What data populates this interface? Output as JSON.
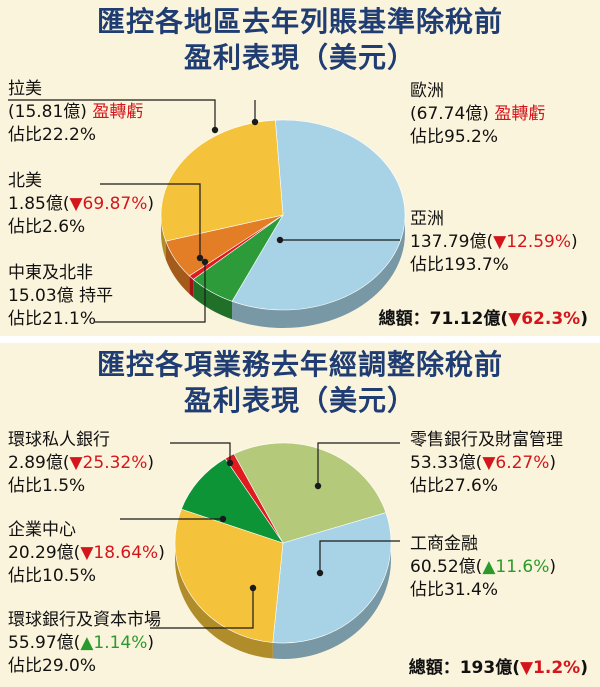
{
  "charts": [
    {
      "title_line1": "匯控各地區去年列賬基準除稅前",
      "title_line2": "盈利表現（美元）",
      "total_label": "總額：",
      "total_value": "71.12億(",
      "total_change": "▼62.3%",
      "total_close": ")",
      "segments": [
        {
          "name": "拉美",
          "value_text": "(15.81億)",
          "change": "盈轉虧",
          "share": "佔比22.2%",
          "color": "#e37d26"
        },
        {
          "name": "北美",
          "value_text": "1.85億(",
          "change": "▼69.87%",
          "close": ")",
          "share": "佔比2.6%",
          "color": "#e01b1f"
        },
        {
          "name": "中東及北非",
          "value_text": "15.03億",
          "change": "持平",
          "share": "佔比21.1%",
          "color": "#2e9b3a"
        },
        {
          "name": "亞洲",
          "value_text": "137.79億(",
          "change": "▼12.59%",
          "close": ")",
          "share": "佔比193.7%",
          "color": "#a8d3e6"
        },
        {
          "name": "歐洲",
          "value_text": "(67.74億)",
          "change": "盈轉虧",
          "share": "佔比95.2%",
          "color": "#f4c33b"
        }
      ]
    },
    {
      "title_line1": "匯控各項業務去年經調整除稅前",
      "title_line2": "盈利表現（美元）",
      "total_label": "總額：",
      "total_value": "193億(",
      "total_change": "▼1.2%",
      "total_close": ")",
      "segments": [
        {
          "name": "環球私人銀行",
          "value_text": "2.89億(",
          "change": "▼25.32%",
          "close": ")",
          "share": "佔比1.5%",
          "color": "#e01b1f"
        },
        {
          "name": "企業中心",
          "value_text": "20.29億(",
          "change": "▼18.64%",
          "close": ")",
          "share": "佔比10.5%",
          "color": "#0c9436"
        },
        {
          "name": "環球銀行及資本市場",
          "value_text": "55.97億(",
          "change": "▲1.14%",
          "close": ")",
          "share": "佔比29.0%",
          "color": "#f5c23b"
        },
        {
          "name": "工商金融",
          "value_text": "60.52億(",
          "change": "▲11.6%",
          "close": ")",
          "share": "佔比31.4%",
          "color": "#a8d3e6"
        },
        {
          "name": "零售銀行及財富管理",
          "value_text": "53.33億(",
          "change": "▼6.27%",
          "close": ")",
          "share": "佔比27.6%",
          "color": "#b4c97a"
        }
      ]
    }
  ],
  "chart_data": [
    {
      "type": "pie",
      "title": "匯控各地區去年列賬基準除稅前盈利表現（美元）",
      "unit": "億",
      "categories": [
        "拉美",
        "北美",
        "中東及北非",
        "亞洲",
        "歐洲"
      ],
      "values": [
        -15.81,
        1.85,
        15.03,
        137.79,
        -67.74
      ],
      "share_percent": [
        22.2,
        2.6,
        21.1,
        193.7,
        95.2
      ],
      "total": 71.12
    },
    {
      "type": "pie",
      "title": "匯控各項業務去年經調整除稅前盈利表現（美元）",
      "unit": "億",
      "categories": [
        "環球私人銀行",
        "企業中心",
        "環球銀行及資本市場",
        "工商金融",
        "零售銀行及財富管理"
      ],
      "values": [
        2.89,
        20.29,
        55.97,
        60.52,
        53.33
      ],
      "share_percent": [
        1.5,
        10.5,
        29.0,
        31.4,
        27.6
      ],
      "total": 193
    }
  ]
}
